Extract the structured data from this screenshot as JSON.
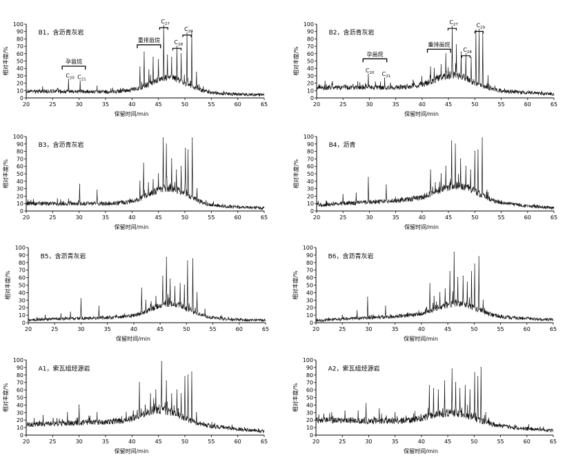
{
  "figure": {
    "xlabel": "保留时间/min",
    "ylabel": "相对丰度/%",
    "x_ticks": [
      20,
      25,
      30,
      35,
      40,
      45,
      50,
      55,
      60,
      65
    ],
    "y_ticks": [
      0,
      10,
      20,
      30,
      40,
      50,
      60,
      70,
      80,
      90,
      100
    ]
  },
  "chart_data": [
    {
      "type": "line",
      "title": "B1，含沥青灰岩",
      "xlim": [
        20,
        65
      ],
      "ylim": [
        0,
        100
      ],
      "grid": false,
      "baseline": {
        "start": 9,
        "mid": 8,
        "end": 4
      },
      "hump": {
        "center": 47,
        "width": 5,
        "height": 20
      },
      "peaks": [
        {
          "x": 23.1,
          "y": 15
        },
        {
          "x": 26.0,
          "y": 13
        },
        {
          "x": 28.0,
          "y": 25,
          "label": "C",
          "sub": "20"
        },
        {
          "x": 30.2,
          "y": 23,
          "label": "C",
          "sub": "21"
        },
        {
          "x": 33.4,
          "y": 16
        },
        {
          "x": 38.3,
          "y": 13
        },
        {
          "x": 41.5,
          "y": 42
        },
        {
          "x": 42.3,
          "y": 62
        },
        {
          "x": 43.2,
          "y": 38
        },
        {
          "x": 44.0,
          "y": 55
        },
        {
          "x": 45.0,
          "y": 52
        },
        {
          "x": 46.0,
          "y": 98,
          "label": "C",
          "sub": "27"
        },
        {
          "x": 46.7,
          "y": 58
        },
        {
          "x": 47.5,
          "y": 55
        },
        {
          "x": 48.5,
          "y": 70,
          "label": "C",
          "sub": "28"
        },
        {
          "x": 49.3,
          "y": 60
        },
        {
          "x": 50.4,
          "y": 88,
          "label": "C",
          "sub": "29"
        },
        {
          "x": 51.3,
          "y": 90
        },
        {
          "x": 52.2,
          "y": 35
        },
        {
          "x": 53.5,
          "y": 15
        }
      ],
      "groups": [
        {
          "label": "孕甾烷",
          "x1": 26.8,
          "x2": 31.2,
          "y": 43
        },
        {
          "label": "重排甾烷",
          "x1": 41.0,
          "x2": 45.4,
          "y": 72
        }
      ]
    },
    {
      "type": "line",
      "title": "B2，含沥青灰岩",
      "xlim": [
        20,
        65
      ],
      "ylim": [
        0,
        100
      ],
      "grid": false,
      "baseline": {
        "start": 14,
        "mid": 14,
        "end": 5
      },
      "hump": {
        "center": 46,
        "width": 5,
        "height": 18
      },
      "peaks": [
        {
          "x": 23.0,
          "y": 22
        },
        {
          "x": 25.5,
          "y": 18
        },
        {
          "x": 27.8,
          "y": 22
        },
        {
          "x": 29.8,
          "y": 32,
          "label": "C",
          "sub": "20"
        },
        {
          "x": 32.9,
          "y": 27,
          "label": "C",
          "sub": "21"
        },
        {
          "x": 38.5,
          "y": 20
        },
        {
          "x": 41.6,
          "y": 42
        },
        {
          "x": 42.3,
          "y": 40
        },
        {
          "x": 43.6,
          "y": 45
        },
        {
          "x": 44.5,
          "y": 60
        },
        {
          "x": 45.7,
          "y": 97,
          "label": "C",
          "sub": "27"
        },
        {
          "x": 46.5,
          "y": 72
        },
        {
          "x": 47.4,
          "y": 62
        },
        {
          "x": 48.3,
          "y": 60,
          "label": "C",
          "sub": "28"
        },
        {
          "x": 49.3,
          "y": 55
        },
        {
          "x": 50.2,
          "y": 92
        },
        {
          "x": 50.8,
          "y": 93,
          "label": "C",
          "sub": "29"
        },
        {
          "x": 51.5,
          "y": 88
        },
        {
          "x": 52.5,
          "y": 30
        }
      ],
      "groups": [
        {
          "label": "孕甾烷",
          "x1": 28.8,
          "x2": 33.3,
          "y": 53
        },
        {
          "label": "重排甾烷",
          "x1": 41.0,
          "x2": 45.4,
          "y": 66
        }
      ]
    },
    {
      "type": "line",
      "title": "B3，含沥青灰岩",
      "xlim": [
        20,
        65
      ],
      "ylim": [
        0,
        100
      ],
      "grid": false,
      "baseline": {
        "start": 10,
        "mid": 10,
        "end": 4
      },
      "hump": {
        "center": 47,
        "width": 5,
        "height": 22
      },
      "peaks": [
        {
          "x": 26.5,
          "y": 15
        },
        {
          "x": 28.0,
          "y": 16
        },
        {
          "x": 30.1,
          "y": 36
        },
        {
          "x": 33.4,
          "y": 28
        },
        {
          "x": 38.0,
          "y": 14
        },
        {
          "x": 41.5,
          "y": 40
        },
        {
          "x": 42.2,
          "y": 64
        },
        {
          "x": 43.1,
          "y": 38
        },
        {
          "x": 44.0,
          "y": 42
        },
        {
          "x": 45.0,
          "y": 50
        },
        {
          "x": 45.9,
          "y": 98
        },
        {
          "x": 46.5,
          "y": 90
        },
        {
          "x": 47.5,
          "y": 70
        },
        {
          "x": 48.4,
          "y": 55
        },
        {
          "x": 49.3,
          "y": 60
        },
        {
          "x": 50.1,
          "y": 84
        },
        {
          "x": 50.6,
          "y": 82
        },
        {
          "x": 51.4,
          "y": 98
        },
        {
          "x": 52.3,
          "y": 30
        },
        {
          "x": 54.0,
          "y": 14
        }
      ]
    },
    {
      "type": "line",
      "title": "B4，沥青",
      "xlim": [
        20,
        65
      ],
      "ylim": [
        0,
        100
      ],
      "grid": false,
      "baseline": {
        "start": 8,
        "mid": 17,
        "end": 4
      },
      "hump": {
        "center": 47,
        "width": 5,
        "height": 20
      },
      "peaks": [
        {
          "x": 25.0,
          "y": 22
        },
        {
          "x": 27.5,
          "y": 24
        },
        {
          "x": 29.8,
          "y": 45
        },
        {
          "x": 33.2,
          "y": 35
        },
        {
          "x": 38.5,
          "y": 20
        },
        {
          "x": 41.6,
          "y": 55
        },
        {
          "x": 42.5,
          "y": 38
        },
        {
          "x": 43.6,
          "y": 50
        },
        {
          "x": 44.5,
          "y": 60
        },
        {
          "x": 45.6,
          "y": 94
        },
        {
          "x": 46.3,
          "y": 90
        },
        {
          "x": 47.3,
          "y": 70
        },
        {
          "x": 48.3,
          "y": 60
        },
        {
          "x": 49.2,
          "y": 55
        },
        {
          "x": 50.0,
          "y": 80
        },
        {
          "x": 50.6,
          "y": 82
        },
        {
          "x": 51.4,
          "y": 98
        },
        {
          "x": 52.5,
          "y": 25
        },
        {
          "x": 61.8,
          "y": 8
        }
      ]
    },
    {
      "type": "line",
      "title": "B5，含沥青灰岩",
      "xlim": [
        20,
        65
      ],
      "ylim": [
        0,
        100
      ],
      "grid": false,
      "baseline": {
        "start": 4,
        "mid": 8,
        "end": 3
      },
      "hump": {
        "center": 47,
        "width": 5,
        "height": 18
      },
      "peaks": [
        {
          "x": 23.2,
          "y": 10
        },
        {
          "x": 26.2,
          "y": 12
        },
        {
          "x": 28.0,
          "y": 14
        },
        {
          "x": 30.0,
          "y": 32
        },
        {
          "x": 33.4,
          "y": 22
        },
        {
          "x": 38.2,
          "y": 12
        },
        {
          "x": 41.5,
          "y": 46
        },
        {
          "x": 42.3,
          "y": 30
        },
        {
          "x": 43.3,
          "y": 28
        },
        {
          "x": 44.2,
          "y": 35
        },
        {
          "x": 45.5,
          "y": 62
        },
        {
          "x": 46.2,
          "y": 87
        },
        {
          "x": 46.9,
          "y": 58
        },
        {
          "x": 47.8,
          "y": 48
        },
        {
          "x": 48.8,
          "y": 52
        },
        {
          "x": 49.6,
          "y": 50
        },
        {
          "x": 50.2,
          "y": 82
        },
        {
          "x": 51.2,
          "y": 85
        },
        {
          "x": 52.0,
          "y": 40
        },
        {
          "x": 53.5,
          "y": 18
        }
      ]
    },
    {
      "type": "line",
      "title": "B6，含沥青灰岩",
      "xlim": [
        20,
        65
      ],
      "ylim": [
        0,
        100
      ],
      "grid": false,
      "baseline": {
        "start": 3,
        "mid": 11,
        "end": 4
      },
      "hump": {
        "center": 47,
        "width": 5,
        "height": 16
      },
      "peaks": [
        {
          "x": 25.0,
          "y": 10
        },
        {
          "x": 27.8,
          "y": 16
        },
        {
          "x": 29.8,
          "y": 34
        },
        {
          "x": 33.2,
          "y": 22
        },
        {
          "x": 38.0,
          "y": 12
        },
        {
          "x": 41.6,
          "y": 52
        },
        {
          "x": 42.4,
          "y": 35
        },
        {
          "x": 43.5,
          "y": 40
        },
        {
          "x": 44.5,
          "y": 45
        },
        {
          "x": 45.4,
          "y": 68
        },
        {
          "x": 46.2,
          "y": 94
        },
        {
          "x": 46.9,
          "y": 60
        },
        {
          "x": 47.9,
          "y": 62
        },
        {
          "x": 48.7,
          "y": 54
        },
        {
          "x": 49.5,
          "y": 68
        },
        {
          "x": 50.1,
          "y": 78
        },
        {
          "x": 50.9,
          "y": 88
        },
        {
          "x": 51.7,
          "y": 30
        },
        {
          "x": 53.0,
          "y": 14
        }
      ]
    },
    {
      "type": "line",
      "title": "A1，索瓦组烃源岩",
      "xlim": [
        20,
        65
      ],
      "ylim": [
        0,
        100
      ],
      "grid": false,
      "baseline": {
        "start": 14,
        "mid": 19,
        "end": 5
      },
      "hump": {
        "center": 46,
        "width": 5,
        "height": 16
      },
      "peaks": [
        {
          "x": 21.5,
          "y": 22
        },
        {
          "x": 23.2,
          "y": 26
        },
        {
          "x": 25.8,
          "y": 22
        },
        {
          "x": 27.8,
          "y": 30
        },
        {
          "x": 30.0,
          "y": 40
        },
        {
          "x": 33.4,
          "y": 30
        },
        {
          "x": 37.0,
          "y": 22
        },
        {
          "x": 39.4,
          "y": 24
        },
        {
          "x": 41.4,
          "y": 70
        },
        {
          "x": 42.5,
          "y": 40
        },
        {
          "x": 43.5,
          "y": 55
        },
        {
          "x": 44.5,
          "y": 60
        },
        {
          "x": 45.6,
          "y": 98
        },
        {
          "x": 46.5,
          "y": 72
        },
        {
          "x": 47.5,
          "y": 55
        },
        {
          "x": 48.5,
          "y": 60
        },
        {
          "x": 49.3,
          "y": 55
        },
        {
          "x": 50.0,
          "y": 78
        },
        {
          "x": 50.6,
          "y": 80
        },
        {
          "x": 51.3,
          "y": 84
        },
        {
          "x": 52.2,
          "y": 30
        }
      ]
    },
    {
      "type": "line",
      "title": "A2，索瓦组烃源岩",
      "xlim": [
        20,
        65
      ],
      "ylim": [
        0,
        100
      ],
      "grid": false,
      "baseline": {
        "start": 20,
        "mid": 17,
        "end": 6
      },
      "hump": {
        "center": 46,
        "width": 6,
        "height": 14
      },
      "peaks": [
        {
          "x": 21.5,
          "y": 28
        },
        {
          "x": 23.0,
          "y": 30
        },
        {
          "x": 25.5,
          "y": 32
        },
        {
          "x": 28.0,
          "y": 32
        },
        {
          "x": 29.5,
          "y": 42
        },
        {
          "x": 32.0,
          "y": 35
        },
        {
          "x": 35.0,
          "y": 30
        },
        {
          "x": 38.5,
          "y": 28
        },
        {
          "x": 41.5,
          "y": 66
        },
        {
          "x": 42.3,
          "y": 62
        },
        {
          "x": 43.2,
          "y": 60
        },
        {
          "x": 44.4,
          "y": 72
        },
        {
          "x": 45.8,
          "y": 88
        },
        {
          "x": 46.5,
          "y": 70
        },
        {
          "x": 47.3,
          "y": 62
        },
        {
          "x": 48.3,
          "y": 66
        },
        {
          "x": 49.2,
          "y": 60
        },
        {
          "x": 50.1,
          "y": 83
        },
        {
          "x": 50.7,
          "y": 78
        },
        {
          "x": 51.3,
          "y": 90
        },
        {
          "x": 52.2,
          "y": 30
        }
      ]
    }
  ]
}
